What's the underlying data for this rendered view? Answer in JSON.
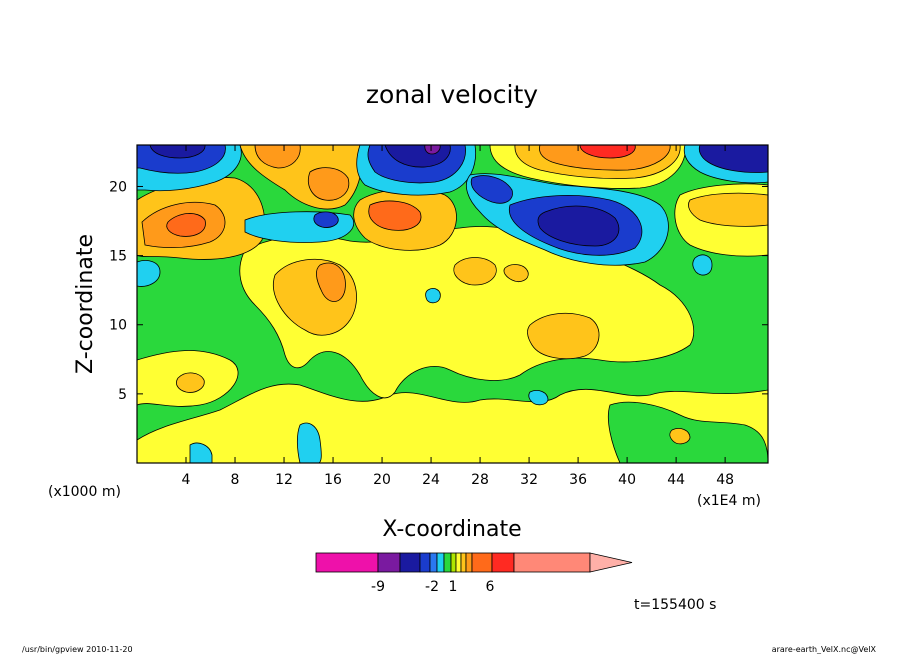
{
  "chart_data": {
    "type": "heatmap",
    "title": "zonal velocity",
    "xlabel": "X-coordinate",
    "ylabel": "Z-coordinate",
    "xunit": "(x1E4 m)",
    "yunit": "(x1000 m)",
    "xlim": [
      0,
      51.5
    ],
    "ylim": [
      0,
      23
    ],
    "xticks": [
      "4",
      "8",
      "12",
      "16",
      "20",
      "24",
      "28",
      "32",
      "36",
      "40",
      "44",
      "48"
    ],
    "yticks": [
      "5",
      "10",
      "15",
      "20"
    ],
    "time_label": "t=155400 s",
    "colorbar_ticks": [
      "-9",
      "-2",
      "1",
      "6"
    ],
    "colorbar_colors": [
      "#ee11aa",
      "#7a1aa0",
      "#1a1aa0",
      "#1a3ccd",
      "#2a78f0",
      "#20d0f0",
      "#2ad83c",
      "#aee600",
      "#ffff33",
      "#ffc41a",
      "#ff9a1a",
      "#ff6a1a",
      "#ff2a22",
      "#ff8877",
      "#ffb0a8"
    ],
    "features": [
      {
        "x": 2,
        "z": 21.5,
        "value": -9
      },
      {
        "x": 5,
        "z": 16.8,
        "value": 6
      },
      {
        "x": 12,
        "z": 22,
        "value": 6
      },
      {
        "x": 15,
        "z": 20.5,
        "value": 6
      },
      {
        "x": 17,
        "z": 13,
        "value": 3
      },
      {
        "x": 20,
        "z": 17.5,
        "value": 6
      },
      {
        "x": 23,
        "z": 21,
        "value": -9
      },
      {
        "x": 35,
        "z": 16.5,
        "value": -12
      },
      {
        "x": 37,
        "z": 22.5,
        "value": 9
      },
      {
        "x": 49,
        "z": 21.5,
        "value": -9
      },
      {
        "x": 14,
        "z": 1,
        "value": -3
      },
      {
        "x": 2,
        "z": 13,
        "value": -3
      }
    ]
  },
  "footer": {
    "left": "/usr/bin/gpview   2010-11-20",
    "right": "arare-earth_VelX.nc@VelX"
  }
}
